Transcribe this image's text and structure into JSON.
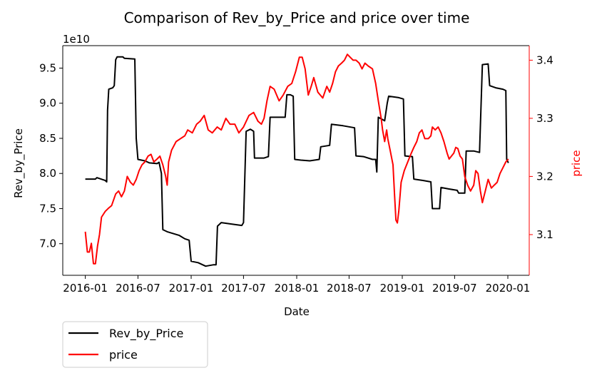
{
  "chart_data": {
    "type": "line",
    "title": "Comparison of Rev_by_Price and price over time",
    "xlabel": "Date",
    "ylabel_left": "Rev_by_Price",
    "ylabel_right": "price",
    "left_offset_label": "1e10",
    "x_ticks": [
      "2016-01",
      "2016-07",
      "2017-01",
      "2017-07",
      "2018-01",
      "2018-07",
      "2019-01",
      "2019-07",
      "2020-01"
    ],
    "y_left_ticks": [
      "7.0",
      "7.5",
      "8.0",
      "8.5",
      "9.0",
      "9.5"
    ],
    "y_right_ticks": [
      "3.1",
      "3.2",
      "3.3",
      "3.4"
    ],
    "x_range": [
      "2015-10-15",
      "2020-03-15"
    ],
    "y_left_range": [
      6.55,
      9.82
    ],
    "y_right_range": [
      3.03,
      3.425
    ],
    "legend_position": "below-left",
    "colors": {
      "left_series": "#000000",
      "right_series": "#ff0000",
      "right_axis": "#ff0000"
    },
    "series": [
      {
        "name": "Rev_by_Price",
        "axis": "left",
        "color": "#000000",
        "points": [
          [
            "2016-01-01",
            7.92
          ],
          [
            "2016-02-05",
            7.92
          ],
          [
            "2016-02-10",
            7.94
          ],
          [
            "2016-03-10",
            7.9
          ],
          [
            "2016-03-15",
            7.88
          ],
          [
            "2016-03-18",
            8.9
          ],
          [
            "2016-03-22",
            9.2
          ],
          [
            "2016-04-05",
            9.22
          ],
          [
            "2016-04-10",
            9.25
          ],
          [
            "2016-04-15",
            9.62
          ],
          [
            "2016-04-20",
            9.66
          ],
          [
            "2016-05-10",
            9.66
          ],
          [
            "2016-05-15",
            9.64
          ],
          [
            "2016-06-20",
            9.63
          ],
          [
            "2016-06-25",
            8.5
          ],
          [
            "2016-07-01",
            8.2
          ],
          [
            "2016-07-25",
            8.18
          ],
          [
            "2016-08-10",
            8.15
          ],
          [
            "2016-09-05",
            8.14
          ],
          [
            "2016-09-12",
            8.16
          ],
          [
            "2016-09-20",
            8.0
          ],
          [
            "2016-09-25",
            7.2
          ],
          [
            "2016-10-10",
            7.17
          ],
          [
            "2016-11-20",
            7.12
          ],
          [
            "2016-12-10",
            7.07
          ],
          [
            "2016-12-25",
            7.05
          ],
          [
            "2017-01-01",
            6.75
          ],
          [
            "2017-01-25",
            6.73
          ],
          [
            "2017-02-20",
            6.68
          ],
          [
            "2017-03-20",
            6.7
          ],
          [
            "2017-03-28",
            6.7
          ],
          [
            "2017-04-02",
            7.25
          ],
          [
            "2017-04-15",
            7.3
          ],
          [
            "2017-05-20",
            7.28
          ],
          [
            "2017-06-25",
            7.26
          ],
          [
            "2017-07-01",
            7.3
          ],
          [
            "2017-07-10",
            8.6
          ],
          [
            "2017-07-25",
            8.63
          ],
          [
            "2017-08-05",
            8.6
          ],
          [
            "2017-08-08",
            8.22
          ],
          [
            "2017-09-10",
            8.22
          ],
          [
            "2017-09-25",
            8.24
          ],
          [
            "2017-10-01",
            8.8
          ],
          [
            "2017-11-15",
            8.8
          ],
          [
            "2017-11-22",
            8.8
          ],
          [
            "2017-11-28",
            9.12
          ],
          [
            "2017-12-10",
            9.12
          ],
          [
            "2017-12-20",
            9.1
          ],
          [
            "2017-12-25",
            8.2
          ],
          [
            "2018-01-15",
            8.19
          ],
          [
            "2018-02-15",
            8.18
          ],
          [
            "2018-03-20",
            8.2
          ],
          [
            "2018-03-25",
            8.38
          ],
          [
            "2018-04-25",
            8.4
          ],
          [
            "2018-05-01",
            8.7
          ],
          [
            "2018-06-10",
            8.68
          ],
          [
            "2018-07-20",
            8.65
          ],
          [
            "2018-07-25",
            8.25
          ],
          [
            "2018-08-20",
            8.24
          ],
          [
            "2018-09-20",
            8.2
          ],
          [
            "2018-10-01",
            8.2
          ],
          [
            "2018-10-05",
            8.02
          ],
          [
            "2018-10-10",
            8.8
          ],
          [
            "2018-11-01",
            8.75
          ],
          [
            "2018-11-10",
            9.0
          ],
          [
            "2018-11-15",
            9.1
          ],
          [
            "2018-12-20",
            9.08
          ],
          [
            "2019-01-05",
            9.06
          ],
          [
            "2019-01-10",
            8.25
          ],
          [
            "2019-02-05",
            8.24
          ],
          [
            "2019-02-10",
            7.92
          ],
          [
            "2019-03-15",
            7.9
          ],
          [
            "2019-04-10",
            7.88
          ],
          [
            "2019-04-15",
            7.5
          ],
          [
            "2019-05-10",
            7.5
          ],
          [
            "2019-05-15",
            7.8
          ],
          [
            "2019-06-10",
            7.78
          ],
          [
            "2019-07-10",
            7.76
          ],
          [
            "2019-07-15",
            7.72
          ],
          [
            "2019-08-05",
            7.72
          ],
          [
            "2019-08-10",
            8.32
          ],
          [
            "2019-09-05",
            8.32
          ],
          [
            "2019-09-25",
            8.3
          ],
          [
            "2019-10-05",
            9.55
          ],
          [
            "2019-10-25",
            9.56
          ],
          [
            "2019-10-30",
            9.25
          ],
          [
            "2019-11-20",
            9.22
          ],
          [
            "2019-12-15",
            9.2
          ],
          [
            "2019-12-25",
            9.18
          ],
          [
            "2019-12-28",
            8.2
          ],
          [
            "2020-01-03",
            8.15
          ]
        ]
      },
      {
        "name": "price",
        "axis": "right",
        "color": "#ff0000",
        "points": [
          [
            "2016-01-01",
            3.105
          ],
          [
            "2016-01-08",
            3.07
          ],
          [
            "2016-01-15",
            3.07
          ],
          [
            "2016-01-22",
            3.085
          ],
          [
            "2016-01-29",
            3.05
          ],
          [
            "2016-02-05",
            3.05
          ],
          [
            "2016-02-12",
            3.08
          ],
          [
            "2016-02-19",
            3.1
          ],
          [
            "2016-02-26",
            3.13
          ],
          [
            "2016-03-10",
            3.14
          ],
          [
            "2016-03-20",
            3.145
          ],
          [
            "2016-04-01",
            3.15
          ],
          [
            "2016-04-15",
            3.17
          ],
          [
            "2016-04-25",
            3.175
          ],
          [
            "2016-05-05",
            3.165
          ],
          [
            "2016-05-15",
            3.175
          ],
          [
            "2016-05-25",
            3.2
          ],
          [
            "2016-06-05",
            3.19
          ],
          [
            "2016-06-15",
            3.185
          ],
          [
            "2016-06-25",
            3.195
          ],
          [
            "2016-07-05",
            3.21
          ],
          [
            "2016-07-15",
            3.22
          ],
          [
            "2016-07-25",
            3.225
          ],
          [
            "2016-08-05",
            3.235
          ],
          [
            "2016-08-15",
            3.238
          ],
          [
            "2016-08-25",
            3.225
          ],
          [
            "2016-09-05",
            3.23
          ],
          [
            "2016-09-15",
            3.235
          ],
          [
            "2016-09-25",
            3.22
          ],
          [
            "2016-10-05",
            3.2
          ],
          [
            "2016-10-10",
            3.185
          ],
          [
            "2016-10-15",
            3.225
          ],
          [
            "2016-10-25",
            3.245
          ],
          [
            "2016-11-10",
            3.26
          ],
          [
            "2016-11-25",
            3.265
          ],
          [
            "2016-12-10",
            3.27
          ],
          [
            "2016-12-20",
            3.28
          ],
          [
            "2017-01-05",
            3.275
          ],
          [
            "2017-01-20",
            3.29
          ],
          [
            "2017-02-01",
            3.295
          ],
          [
            "2017-02-15",
            3.305
          ],
          [
            "2017-03-01",
            3.28
          ],
          [
            "2017-03-15",
            3.275
          ],
          [
            "2017-04-01",
            3.285
          ],
          [
            "2017-04-15",
            3.28
          ],
          [
            "2017-05-01",
            3.3
          ],
          [
            "2017-05-15",
            3.29
          ],
          [
            "2017-06-01",
            3.29
          ],
          [
            "2017-06-15",
            3.275
          ],
          [
            "2017-07-01",
            3.285
          ],
          [
            "2017-07-20",
            3.305
          ],
          [
            "2017-08-05",
            3.31
          ],
          [
            "2017-08-20",
            3.295
          ],
          [
            "2017-09-01",
            3.29
          ],
          [
            "2017-09-10",
            3.3
          ],
          [
            "2017-09-20",
            3.33
          ],
          [
            "2017-10-01",
            3.355
          ],
          [
            "2017-10-15",
            3.35
          ],
          [
            "2017-11-01",
            3.33
          ],
          [
            "2017-11-15",
            3.34
          ],
          [
            "2017-12-01",
            3.355
          ],
          [
            "2017-12-15",
            3.36
          ],
          [
            "2017-12-28",
            3.38
          ],
          [
            "2018-01-10",
            3.405
          ],
          [
            "2018-01-20",
            3.405
          ],
          [
            "2018-01-30",
            3.385
          ],
          [
            "2018-02-10",
            3.34
          ],
          [
            "2018-02-20",
            3.355
          ],
          [
            "2018-03-01",
            3.37
          ],
          [
            "2018-03-15",
            3.345
          ],
          [
            "2018-04-01",
            3.335
          ],
          [
            "2018-04-15",
            3.355
          ],
          [
            "2018-04-25",
            3.345
          ],
          [
            "2018-05-05",
            3.36
          ],
          [
            "2018-05-15",
            3.38
          ],
          [
            "2018-05-25",
            3.39
          ],
          [
            "2018-06-05",
            3.395
          ],
          [
            "2018-06-15",
            3.4
          ],
          [
            "2018-06-25",
            3.41
          ],
          [
            "2018-07-05",
            3.405
          ],
          [
            "2018-07-15",
            3.4
          ],
          [
            "2018-07-25",
            3.4
          ],
          [
            "2018-08-05",
            3.395
          ],
          [
            "2018-08-15",
            3.385
          ],
          [
            "2018-08-25",
            3.395
          ],
          [
            "2018-09-05",
            3.39
          ],
          [
            "2018-09-20",
            3.385
          ],
          [
            "2018-10-01",
            3.36
          ],
          [
            "2018-10-10",
            3.33
          ],
          [
            "2018-10-20",
            3.3
          ],
          [
            "2018-10-25",
            3.28
          ],
          [
            "2018-11-01",
            3.26
          ],
          [
            "2018-11-08",
            3.28
          ],
          [
            "2018-11-12",
            3.265
          ],
          [
            "2018-11-20",
            3.245
          ],
          [
            "2018-11-30",
            3.22
          ],
          [
            "2018-12-05",
            3.17
          ],
          [
            "2018-12-10",
            3.125
          ],
          [
            "2018-12-15",
            3.12
          ],
          [
            "2018-12-20",
            3.14
          ],
          [
            "2018-12-28",
            3.19
          ],
          [
            "2019-01-08",
            3.21
          ],
          [
            "2019-01-20",
            3.225
          ],
          [
            "2019-02-01",
            3.24
          ],
          [
            "2019-02-10",
            3.25
          ],
          [
            "2019-02-20",
            3.26
          ],
          [
            "2019-03-01",
            3.275
          ],
          [
            "2019-03-10",
            3.28
          ],
          [
            "2019-03-20",
            3.265
          ],
          [
            "2019-04-01",
            3.265
          ],
          [
            "2019-04-10",
            3.27
          ],
          [
            "2019-04-15",
            3.285
          ],
          [
            "2019-04-25",
            3.28
          ],
          [
            "2019-05-05",
            3.285
          ],
          [
            "2019-05-15",
            3.275
          ],
          [
            "2019-05-25",
            3.26
          ],
          [
            "2019-06-05",
            3.24
          ],
          [
            "2019-06-12",
            3.23
          ],
          [
            "2019-06-20",
            3.235
          ],
          [
            "2019-06-28",
            3.24
          ],
          [
            "2019-07-05",
            3.25
          ],
          [
            "2019-07-12",
            3.248
          ],
          [
            "2019-07-20",
            3.235
          ],
          [
            "2019-07-28",
            3.23
          ],
          [
            "2019-08-05",
            3.2
          ],
          [
            "2019-08-15",
            3.185
          ],
          [
            "2019-08-25",
            3.175
          ],
          [
            "2019-09-05",
            3.185
          ],
          [
            "2019-09-12",
            3.21
          ],
          [
            "2019-09-20",
            3.205
          ],
          [
            "2019-09-28",
            3.175
          ],
          [
            "2019-10-05",
            3.155
          ],
          [
            "2019-10-15",
            3.175
          ],
          [
            "2019-10-25",
            3.195
          ],
          [
            "2019-11-05",
            3.18
          ],
          [
            "2019-11-15",
            3.185
          ],
          [
            "2019-11-25",
            3.19
          ],
          [
            "2019-12-05",
            3.205
          ],
          [
            "2019-12-15",
            3.215
          ],
          [
            "2019-12-25",
            3.225
          ],
          [
            "2020-01-03",
            3.23
          ]
        ]
      }
    ]
  }
}
